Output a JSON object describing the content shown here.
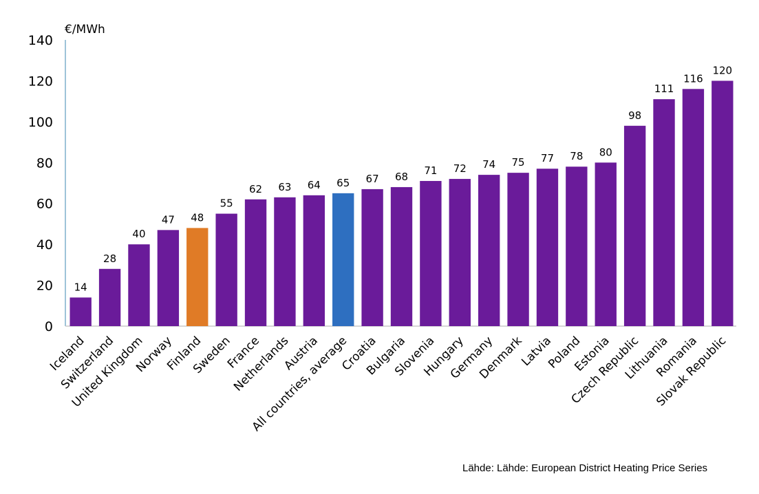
{
  "chart_data": {
    "type": "bar",
    "ylabel": "€/MWh",
    "ylim": [
      0,
      140
    ],
    "yticks": [
      0,
      20,
      40,
      60,
      80,
      100,
      120,
      140
    ],
    "grid": false,
    "legend": "none",
    "categories": [
      "Iceland",
      "Switzerland",
      "United Kingdom",
      "Norway",
      "Finland",
      "Sweden",
      "France",
      "Netherlands",
      "Austria",
      "All countries, average",
      "Croatia",
      "Bulgaria",
      "Slovenia",
      "Hungary",
      "Germany",
      "Denmark",
      "Latvia",
      "Poland",
      "Estonia",
      "Czech Republic",
      "Lithuania",
      "Romania",
      "Slovak Republic"
    ],
    "values": [
      14,
      28,
      40,
      47,
      48,
      55,
      62,
      63,
      64,
      65,
      67,
      68,
      71,
      72,
      74,
      75,
      77,
      78,
      80,
      98,
      111,
      116,
      120
    ],
    "colors": {
      "default": "#6a1b9a",
      "highlight": "#e07b26",
      "average": "#2e6fc0",
      "axis": "#9dc3d8"
    },
    "highlight_category": "Finland",
    "average_category": "All countries, average"
  },
  "source": "Lähde: Lähde: European District Heating Price Series"
}
